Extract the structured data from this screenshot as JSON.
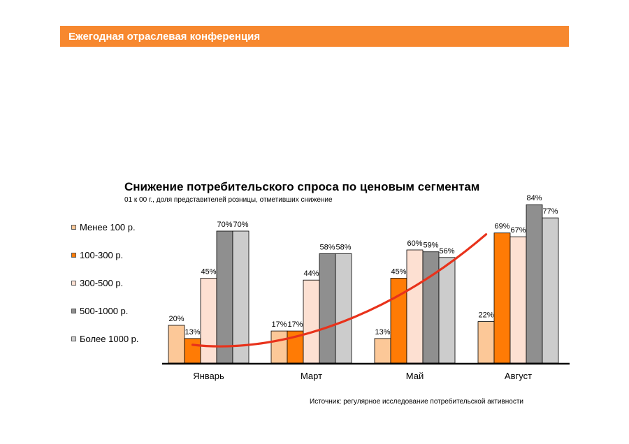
{
  "header": {
    "title": "Ежегодная отраслевая конференция"
  },
  "source": "Источник: регулярное исследование потребительской активности",
  "chart_data": {
    "type": "bar",
    "title": "Снижение потребительского спроса по ценовым сегментам",
    "subtitle": "01 к 00 г., доля представителей розницы, отметивших снижение",
    "categories": [
      "Январь",
      "Март",
      "Май",
      "Август"
    ],
    "ylim": [
      0,
      100
    ],
    "grid": false,
    "legend_position": "left",
    "series": [
      {
        "name": "Менее 100 р.",
        "color": "#fcc898",
        "values": [
          20,
          17,
          13,
          22
        ]
      },
      {
        "name": "100-300 р.",
        "color": "#ff7b05",
        "values": [
          13,
          17,
          45,
          69
        ]
      },
      {
        "name": "300-500 р.",
        "color": "#fde0d2",
        "values": [
          45,
          44,
          60,
          67
        ]
      },
      {
        "name": "500-1000 р.",
        "color": "#8f8f8f",
        "values": [
          70,
          58,
          59,
          84
        ]
      },
      {
        "name": "Более 1000 р.",
        "color": "#cccccc",
        "values": [
          70,
          58,
          56,
          77
        ]
      }
    ],
    "value_labels": [
      [
        "20%",
        "17%",
        "13%",
        "22%"
      ],
      [
        "13%",
        "17%",
        "45%",
        "69%"
      ],
      [
        "45%",
        "44%",
        "60%",
        "67%"
      ],
      [
        "70%",
        "58%",
        "59%",
        "84%"
      ],
      [
        "70%",
        "58%",
        "56%",
        "77%"
      ]
    ],
    "annotations": [
      {
        "type": "trend-curve",
        "color": "#e8321b",
        "start": [
          "Январь",
          13
        ],
        "end": [
          "Август",
          69
        ]
      }
    ]
  }
}
